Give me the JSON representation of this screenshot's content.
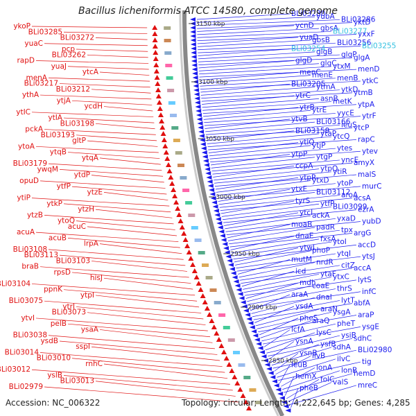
{
  "header": {
    "title": "Bacillus licheniformis ATCC 14580, complete genome"
  },
  "footer": {
    "accession": "Accession: NC_006322",
    "topology": "Topology: circular; Length: 4,222,645 bp; Genes: 4,285"
  },
  "colors": {
    "forward": "#e01010",
    "reverse": "#1a1aee",
    "highlight": "#33c0e0",
    "backbone": "#888888"
  },
  "scale_labels": [
    "3150 kbp",
    "3100 kbp",
    "3050 kbp",
    "3000 kbp",
    "2950 kbp",
    "2900 kbp",
    "2850 kbp"
  ],
  "left_labels": [
    "ykoP",
    "BLi03285",
    "BLi03272",
    "yuaC",
    "pcp",
    "BLi03262",
    "rapD",
    "yuaJ",
    "ytcA",
    "menA",
    "BLi03217",
    "BLi03212",
    "ythA",
    "ytjA",
    "ycdH",
    "ytIC",
    "ytIA",
    "BLi03198",
    "pckA",
    "BLi03193",
    "gltP",
    "ytoA",
    "ytqB",
    "ytqA",
    "BLi03179",
    "ywqM",
    "ytdP",
    "opuD",
    "ytfP",
    "ytzE",
    "ytiP",
    "ytkP",
    "ytzH",
    "ytzB",
    "ytoQ",
    "acuC",
    "acuA",
    "acuB",
    "lrpA",
    "BLi03108",
    "BLi03113",
    "BLi03103",
    "braB",
    "rpsD",
    "hisJ",
    "BLi03104",
    "ppnK",
    "ytpI",
    "BLi03075",
    "ytrI",
    "BLi03073",
    "ytvI",
    "pelB",
    "ysaA",
    "BLi03038",
    "ysdB",
    "sspI",
    "BLi03014",
    "BLi03010",
    "rnhC",
    "BLi03012",
    "yslB",
    "BLi03013",
    "BLi02979"
  ],
  "right_labels": [
    "BLi03280",
    "yubA",
    "BLi03286",
    "yktD",
    "ycnD",
    "gbsA",
    "BLi03277",
    "yxxF",
    "yuaD",
    "gbsB",
    "BLi03256",
    "BLi03255",
    "BLi03254",
    "glgB",
    "glgP",
    "glgA",
    "glgD",
    "glgC",
    "ytxM",
    "menD",
    "menC",
    "menE",
    "menB",
    "ytkC",
    "BLi03205",
    "ytmA",
    "ytkD",
    "ytmB",
    "ytrC",
    "asnB",
    "metK",
    "ytpA",
    "ytrB",
    "ytrE",
    "yycE",
    "ytrF",
    "ytvB",
    "BLi03166",
    "leuS",
    "ytcP",
    "BLi03159",
    "ytaP",
    "ytcQ",
    "rapC",
    "ytlQ",
    "ytjP",
    "ytes",
    "ytev",
    "ytpP",
    "ytgP",
    "yncE",
    "amyX",
    "ccpA",
    "ytpQ",
    "ytiR",
    "malS",
    "ytpR",
    "ytxD",
    "ytoP",
    "murC",
    "ytxE",
    "BLi03112",
    "aroA",
    "acsA",
    "tyrS",
    "ytfP",
    "BLi03099",
    "ezrA",
    "ytcI",
    "ackA",
    "yxaD",
    "yubD",
    "moaB",
    "padR",
    "tpx",
    "argG",
    "dnaE",
    "fxsA",
    "ytoI",
    "accD",
    "ytwI",
    "phoP",
    "ytqI",
    "ytsJ",
    "mutM",
    "nrdR",
    "citZ",
    "accA",
    "icd",
    "ytaF",
    "ytxC",
    "lytS",
    "mdh",
    "coaE",
    "thrS",
    "infC",
    "araA",
    "dnaI",
    "lytT",
    "abfA",
    "ysdA",
    "araN",
    "ysgA",
    "araP",
    "pheS",
    "araQ",
    "pheT",
    "ysgE",
    "lcfA",
    "lysC",
    "ysiB",
    "sdhC",
    "ysnA",
    "ysfB",
    "sdhA",
    "BLi02980",
    "ysnB",
    "ilvB",
    "ilvC",
    "tig",
    "leuB",
    "lonA",
    "lonB",
    "hemD",
    "hemX",
    "folC",
    "valS",
    "mreC",
    "pheB"
  ]
}
